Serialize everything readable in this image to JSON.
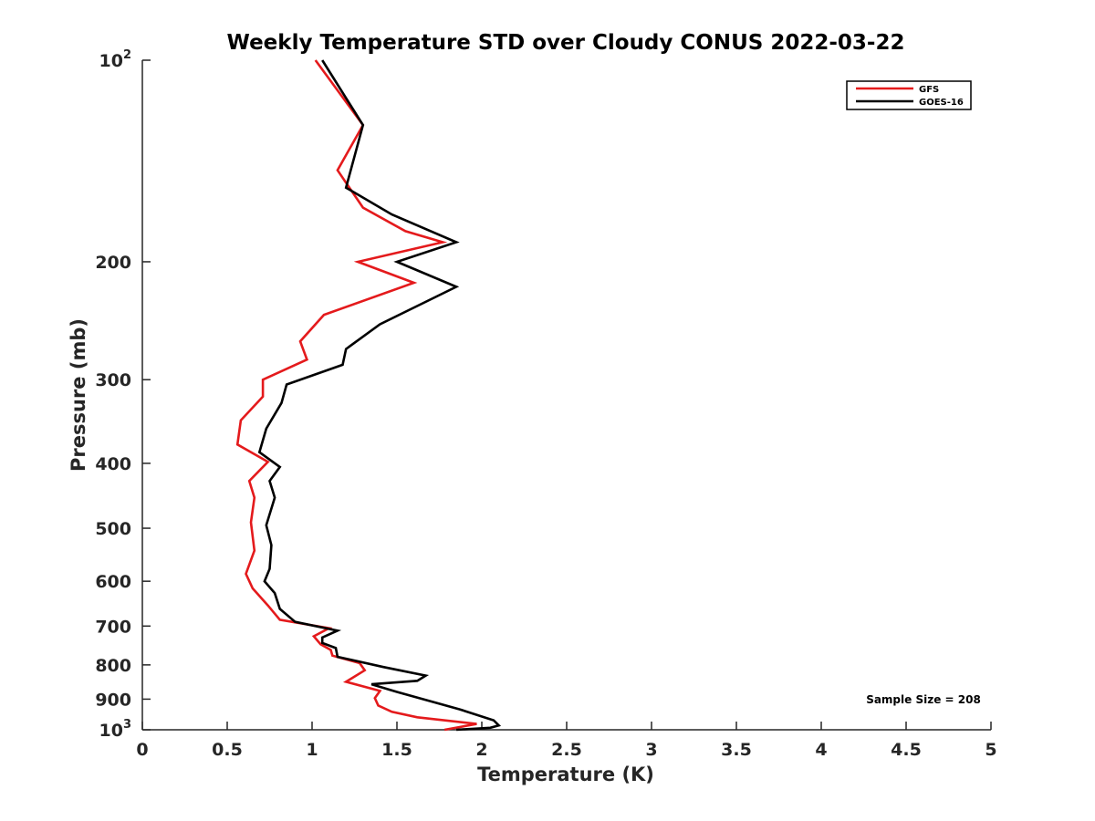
{
  "chart_data": {
    "type": "line",
    "title": "Weekly Temperature STD over Cloudy CONUS 2022-03-22",
    "xlabel": "Temperature (K)",
    "ylabel": "Pressure (mb)",
    "xlim": [
      0,
      5
    ],
    "ylim": [
      100,
      1000
    ],
    "y_scale": "log",
    "y_reversed": true,
    "grid": false,
    "legend_position": "top-right",
    "x_ticks": [
      0,
      0.5,
      1,
      1.5,
      2,
      2.5,
      3,
      3.5,
      4,
      4.5,
      5
    ],
    "x_tick_labels": [
      "0",
      "0.5",
      "1",
      "1.5",
      "2",
      "2.5",
      "3",
      "3.5",
      "4",
      "4.5",
      "5"
    ],
    "y_ticks": [
      {
        "value": 100,
        "base": "10",
        "exp": "2"
      },
      {
        "value": 200,
        "label": "200"
      },
      {
        "value": 300,
        "label": "300"
      },
      {
        "value": 400,
        "label": "400"
      },
      {
        "value": 500,
        "label": "500"
      },
      {
        "value": 600,
        "label": "600"
      },
      {
        "value": 700,
        "label": "700"
      },
      {
        "value": 800,
        "label": "800"
      },
      {
        "value": 900,
        "label": "900"
      },
      {
        "value": 1000,
        "base": "10",
        "exp": "3"
      }
    ],
    "series": [
      {
        "name": "GFS",
        "color": "#e41a1c",
        "points": [
          [
            1.02,
            100
          ],
          [
            1.3,
            125
          ],
          [
            1.15,
            146
          ],
          [
            1.3,
            166
          ],
          [
            1.55,
            180
          ],
          [
            1.77,
            187
          ],
          [
            1.27,
            200
          ],
          [
            1.6,
            215
          ],
          [
            1.07,
            240
          ],
          [
            0.93,
            263
          ],
          [
            0.97,
            280
          ],
          [
            0.71,
            300
          ],
          [
            0.71,
            318
          ],
          [
            0.58,
            345
          ],
          [
            0.56,
            375
          ],
          [
            0.74,
            398
          ],
          [
            0.63,
            425
          ],
          [
            0.66,
            450
          ],
          [
            0.64,
            490
          ],
          [
            0.66,
            540
          ],
          [
            0.61,
            585
          ],
          [
            0.65,
            615
          ],
          [
            0.74,
            652
          ],
          [
            0.81,
            685
          ],
          [
            1.1,
            705
          ],
          [
            1.01,
            725
          ],
          [
            1.05,
            745
          ],
          [
            1.11,
            760
          ],
          [
            1.12,
            775
          ],
          [
            1.28,
            795
          ],
          [
            1.31,
            815
          ],
          [
            1.2,
            848
          ],
          [
            1.4,
            875
          ],
          [
            1.37,
            897
          ],
          [
            1.39,
            920
          ],
          [
            1.47,
            940
          ],
          [
            1.62,
            958
          ],
          [
            1.97,
            980
          ],
          [
            1.78,
            1000
          ]
        ]
      },
      {
        "name": "GOES-16",
        "color": "#000000",
        "points": [
          [
            1.06,
            100
          ],
          [
            1.3,
            125
          ],
          [
            1.2,
            155
          ],
          [
            1.47,
            170
          ],
          [
            1.85,
            187
          ],
          [
            1.5,
            200
          ],
          [
            1.85,
            218
          ],
          [
            1.4,
            248
          ],
          [
            1.2,
            270
          ],
          [
            1.18,
            285
          ],
          [
            0.85,
            305
          ],
          [
            0.82,
            325
          ],
          [
            0.73,
            355
          ],
          [
            0.69,
            385
          ],
          [
            0.81,
            405
          ],
          [
            0.75,
            425
          ],
          [
            0.78,
            450
          ],
          [
            0.73,
            495
          ],
          [
            0.76,
            530
          ],
          [
            0.75,
            575
          ],
          [
            0.72,
            600
          ],
          [
            0.78,
            625
          ],
          [
            0.81,
            660
          ],
          [
            0.9,
            690
          ],
          [
            1.15,
            711
          ],
          [
            1.06,
            728
          ],
          [
            1.06,
            742
          ],
          [
            1.14,
            755
          ],
          [
            1.15,
            778
          ],
          [
            1.42,
            806
          ],
          [
            1.67,
            830
          ],
          [
            1.62,
            845
          ],
          [
            1.35,
            855
          ],
          [
            1.5,
            878
          ],
          [
            1.87,
            932
          ],
          [
            2.07,
            968
          ],
          [
            2.1,
            985
          ],
          [
            2.05,
            993
          ],
          [
            1.85,
            1000
          ]
        ]
      }
    ],
    "annotations": [
      "Sample Size = 208"
    ]
  }
}
